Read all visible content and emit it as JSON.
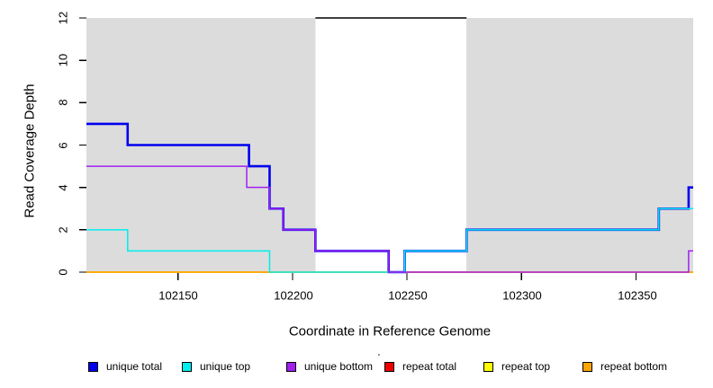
{
  "chart_data": {
    "type": "line",
    "subtype": "step-coverage",
    "title": "",
    "xlabel": "Coordinate in Reference Genome",
    "ylabel": "Read Coverage Depth",
    "xlim": [
      102110,
      102375
    ],
    "ylim": [
      0,
      12
    ],
    "x_ticks": [
      "102150",
      "102200",
      "102250",
      "102300",
      "102350"
    ],
    "x_tick_values": [
      102150,
      102200,
      102250,
      102300,
      102350
    ],
    "y_ticks": [
      "0",
      "2",
      "4",
      "6",
      "8",
      "10",
      "12"
    ],
    "y_tick_values": [
      0,
      2,
      4,
      6,
      8,
      10,
      12
    ],
    "grid": false,
    "legend_position": "bottom",
    "background_color": "#ffffff",
    "shaded_regions": [
      {
        "x0": 102110,
        "x1": 102210,
        "color": "#DCDCDC"
      },
      {
        "x0": 102276,
        "x1": 102375,
        "color": "#DCDCDC"
      }
    ],
    "top_segment": {
      "x0": 102210,
      "x1": 102276,
      "y": 12,
      "color": "#000000"
    },
    "series": [
      {
        "name": "repeat total",
        "color": "#EE0000",
        "width": 1.5,
        "steps": [
          [
            102110,
            0
          ],
          [
            102375,
            0
          ]
        ]
      },
      {
        "name": "repeat top",
        "color": "#FFFF00",
        "width": 1.5,
        "steps": [
          [
            102110,
            0
          ],
          [
            102375,
            0
          ]
        ]
      },
      {
        "name": "repeat bottom",
        "color": "#FFA500",
        "width": 1.5,
        "steps": [
          [
            102110,
            0
          ],
          [
            102375,
            0
          ]
        ]
      },
      {
        "name": "unique total",
        "color": "#0000EE",
        "width": 2.6,
        "steps": [
          [
            102110,
            7
          ],
          [
            102128,
            6
          ],
          [
            102181,
            5
          ],
          [
            102190,
            3
          ],
          [
            102196,
            2
          ],
          [
            102210,
            1
          ],
          [
            102242,
            0
          ],
          [
            102249,
            1
          ],
          [
            102276,
            2
          ],
          [
            102360,
            3
          ],
          [
            102373,
            4
          ],
          [
            102375,
            4
          ]
        ]
      },
      {
        "name": "unique top",
        "color": "#00EEEE",
        "width": 1.5,
        "steps": [
          [
            102110,
            2
          ],
          [
            102128,
            1
          ],
          [
            102190,
            0
          ],
          [
            102249,
            1
          ],
          [
            102276,
            2
          ],
          [
            102360,
            3
          ],
          [
            102375,
            3
          ]
        ]
      },
      {
        "name": "unique bottom",
        "color": "#A020F0",
        "width": 1.5,
        "steps": [
          [
            102110,
            5
          ],
          [
            102180,
            4
          ],
          [
            102190,
            3
          ],
          [
            102196,
            2
          ],
          [
            102210,
            1
          ],
          [
            102242,
            0
          ],
          [
            102373,
            1
          ],
          [
            102375,
            1
          ]
        ]
      }
    ]
  },
  "legend": {
    "items": [
      {
        "label": "unique total",
        "color": "#0000EE"
      },
      {
        "label": "unique top",
        "color": "#00EEEE"
      },
      {
        "label": "unique bottom",
        "color": "#A020F0"
      },
      {
        "label": "repeat total",
        "color": "#EE0000"
      },
      {
        "label": "repeat top",
        "color": "#FFFF00"
      },
      {
        "label": "repeat bottom",
        "color": "#FFA500"
      }
    ],
    "stray_mark": "'"
  }
}
